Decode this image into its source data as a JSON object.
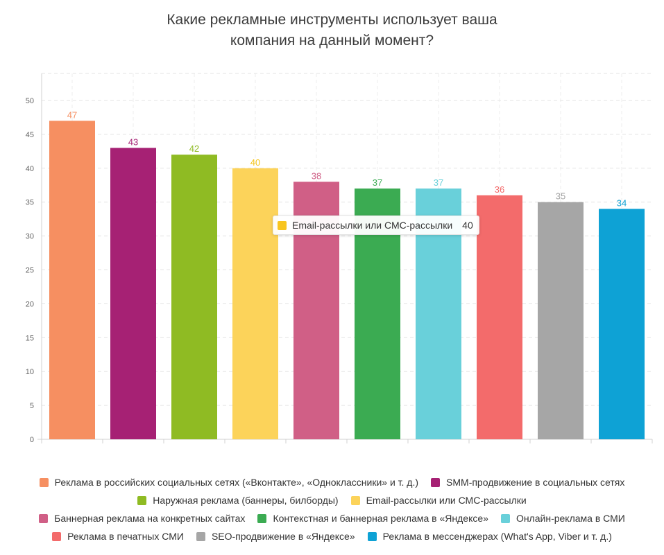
{
  "title_lines": [
    "Какие рекламные инструменты использует ваша",
    "компания на данный момент?"
  ],
  "chart_data": {
    "type": "bar",
    "title": "Какие рекламные инструменты использует ваша компания на данный момент?",
    "categories": [
      "Реклама в российских социальных сетях («Вконтакте», «Одноклассники» и т. д.)",
      "SMM-продвижение в социальных сетях",
      "Наружная реклама (баннеры, билборды)",
      "Email-рассылки или СМС-рассылки",
      "Баннерная реклама на конкретных сайтах",
      "Контекстная и баннерная реклама в «Яндексе»",
      "Онлайн-реклама в СМИ",
      "Реклама в печатных СМИ",
      "SEO-продвижение в «Яндексе»",
      "Реклама в мессенджерах (What's App, Viber и т. д.)"
    ],
    "values": [
      47,
      43,
      42,
      40,
      38,
      37,
      37,
      36,
      35,
      34
    ],
    "colors": [
      "#f68f61",
      "#a62174",
      "#8fbb23",
      "#fcd35a",
      "#d05f86",
      "#3bab52",
      "#69d0da",
      "#f36b6b",
      "#a6a6a6",
      "#0ea2d5"
    ],
    "label_colors": [
      "#f68f61",
      "#a62174",
      "#8fbb23",
      "#f5c518",
      "#d05f86",
      "#3bab52",
      "#69d0da",
      "#f36b6b",
      "#a6a6a6",
      "#0ea2d5"
    ],
    "ylim": [
      0,
      50
    ],
    "yticks": [
      0,
      5,
      10,
      15,
      20,
      25,
      30,
      35,
      40,
      45,
      50
    ],
    "grid": true,
    "legend_position": "bottom"
  },
  "tooltip": {
    "label": "Email-рассылки или СМС-рассылки",
    "value": "40",
    "color": "#f8c51f"
  },
  "legend": {
    "position": "bottom",
    "rows": [
      [
        0,
        1
      ],
      [
        2,
        3
      ],
      [
        4,
        5,
        6
      ],
      [
        7,
        8,
        9
      ]
    ]
  }
}
